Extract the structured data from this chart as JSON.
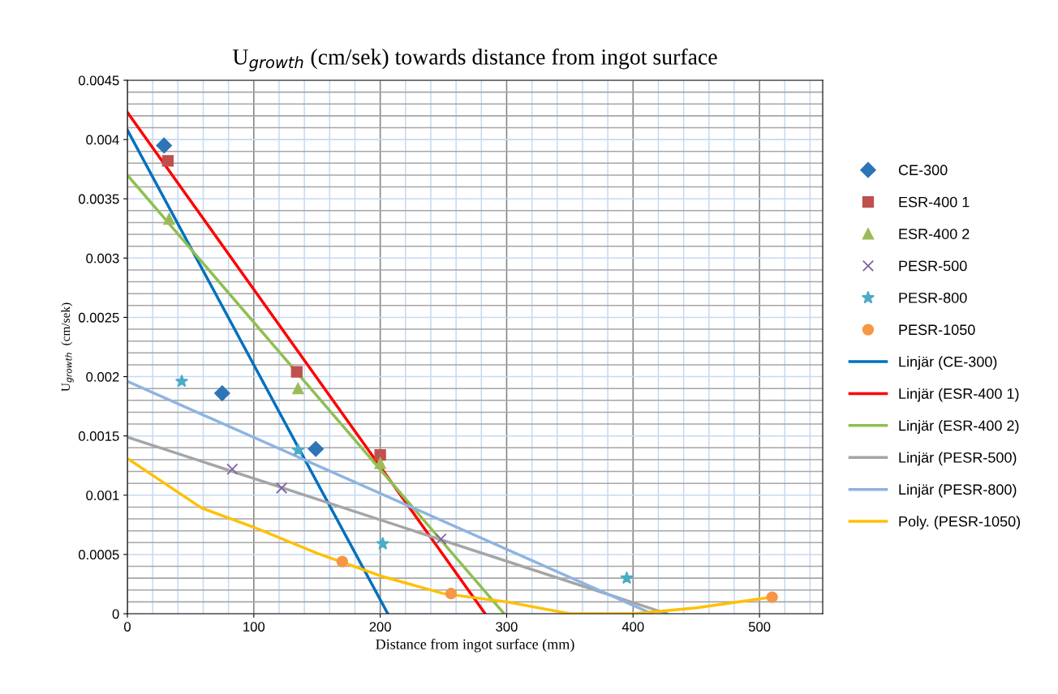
{
  "chart_data": {
    "type": "scatter",
    "title": "U$_{growth}$ (cm/sek) towards distance from ingot surface",
    "xlabel": "Distance from ingot surface (mm)",
    "ylabel": "U$_{growth}$  (cm/sek)",
    "xlim": [
      0,
      550
    ],
    "xticks": [
      0,
      {
        "value": 20,
        "label": null
      },
      {
        "value": 40,
        "label": null
      },
      {
        "value": 60,
        "label": null
      },
      {
        "value": 80,
        "label": null
      },
      100,
      {
        "value": 120,
        "label": null
      },
      {
        "value": 140,
        "label": null
      },
      {
        "value": 160,
        "label": null
      },
      {
        "value": 180,
        "label": null
      },
      200,
      {
        "value": 220,
        "label": null
      },
      {
        "value": 240,
        "label": null
      },
      {
        "value": 260,
        "label": null
      },
      {
        "value": 280,
        "label": null
      },
      300,
      {
        "value": 320,
        "label": null
      },
      {
        "value": 340,
        "label": null
      },
      {
        "value": 360,
        "label": null
      },
      {
        "value": 380,
        "label": null
      },
      400,
      {
        "value": 420,
        "label": null
      },
      {
        "value": 440,
        "label": null
      },
      {
        "value": 460,
        "label": null
      },
      {
        "value": 480,
        "label": null
      },
      500,
      {
        "value": 520,
        "label": null
      },
      {
        "value": 540,
        "label": null
      }
    ],
    "ylim": [
      0,
      0.0045
    ],
    "yticks": [
      0,
      {
        "value": 0.0001,
        "label": null
      },
      {
        "value": 0.0002,
        "label": null
      },
      {
        "value": 0.0003,
        "label": null
      },
      {
        "value": 0.0004,
        "label": null
      },
      0.0005,
      {
        "value": 0.0006,
        "label": null
      },
      {
        "value": 0.0007,
        "label": null
      },
      {
        "value": 0.0008,
        "label": null
      },
      {
        "value": 0.0009,
        "label": null
      },
      0.001,
      {
        "value": 0.0011,
        "label": null
      },
      {
        "value": 0.0012,
        "label": null
      },
      {
        "value": 0.0013,
        "label": null
      },
      {
        "value": 0.0014,
        "label": null
      },
      0.0015,
      {
        "value": 0.0016,
        "label": null
      },
      {
        "value": 0.0017,
        "label": null
      },
      {
        "value": 0.0018,
        "label": null
      },
      {
        "value": 0.0019,
        "label": null
      },
      0.002,
      {
        "value": 0.0021,
        "label": null
      },
      {
        "value": 0.0022,
        "label": null
      },
      {
        "value": 0.0023,
        "label": null
      },
      {
        "value": 0.0024,
        "label": null
      },
      0.0025,
      {
        "value": 0.0026,
        "label": null
      },
      {
        "value": 0.0027,
        "label": null
      },
      {
        "value": 0.0028,
        "label": null
      },
      {
        "value": 0.0029,
        "label": null
      },
      0.003,
      {
        "value": 0.0031,
        "label": null
      },
      {
        "value": 0.0032,
        "label": null
      },
      {
        "value": 0.0033,
        "label": null
      },
      {
        "value": 0.0034,
        "label": null
      },
      0.0035,
      {
        "value": 0.0036,
        "label": null
      },
      {
        "value": 0.0037,
        "label": null
      },
      {
        "value": 0.0038,
        "label": null
      },
      {
        "value": 0.0039,
        "label": null
      },
      0.004,
      {
        "value": 0.0041,
        "label": null
      },
      {
        "value": 0.0042,
        "label": null
      },
      {
        "value": 0.0043,
        "label": null
      },
      {
        "value": 0.0044,
        "label": null
      },
      0.0045
    ],
    "grid": true,
    "legend": "right",
    "series": [
      {
        "name": "CE-300",
        "marker": "diamond",
        "color": "#2e75b6",
        "x": [
          29,
          75,
          149
        ],
        "values": [
          0.00395,
          0.00186,
          0.00139
        ]
      },
      {
        "name": "ESR-400 1",
        "marker": "square",
        "color": "#c0504d",
        "x": [
          32,
          134,
          200
        ],
        "values": [
          0.00382,
          0.00204,
          0.00134
        ]
      },
      {
        "name": "ESR-400 2",
        "marker": "triangle",
        "color": "#9bbb59",
        "x": [
          33,
          135,
          200
        ],
        "values": [
          0.00333,
          0.0019,
          0.00127
        ]
      },
      {
        "name": "PESR-500",
        "marker": "cross",
        "color": "#8064a2",
        "x": [
          83,
          122,
          248
        ],
        "values": [
          0.00122,
          0.00106,
          0.00063
        ]
      },
      {
        "name": "PESR-800",
        "marker": "star",
        "color": "#4bacc6",
        "x": [
          43,
          135,
          202,
          395
        ],
        "values": [
          0.00196,
          0.00138,
          0.00059,
          0.0003
        ]
      },
      {
        "name": "PESR-1050",
        "marker": "circle",
        "color": "#f79646",
        "x": [
          170,
          256,
          510
        ],
        "values": [
          0.00044,
          0.00017,
          0.00014
        ]
      },
      {
        "name": "Linjär (CE-300)",
        "type": "line",
        "color": "#0070c0",
        "x": [
          0,
          206
        ],
        "values": [
          0.00408,
          0
        ]
      },
      {
        "name": "Linjär (ESR-400 1)",
        "type": "line",
        "color": "#ff0000",
        "x": [
          0,
          283
        ],
        "values": [
          0.00423,
          0
        ]
      },
      {
        "name": "Linjär (ESR-400 2)",
        "type": "line",
        "color": "#8fbf4f",
        "x": [
          0,
          298
        ],
        "values": [
          0.0037,
          0
        ]
      },
      {
        "name": "Linjär (PESR-500)",
        "type": "line",
        "color": "#a5a5a5",
        "x": [
          0,
          427
        ],
        "values": [
          0.00149,
          0
        ]
      },
      {
        "name": "Linjär (PESR-800)",
        "type": "line",
        "color": "#8db4e2",
        "x": [
          0,
          415
        ],
        "values": [
          0.00196,
          0
        ]
      },
      {
        "name": "Poly. (PESR-1050)",
        "type": "line",
        "color": "#ffc000",
        "x": [
          0,
          59,
          100,
          150,
          200,
          250,
          300,
          350,
          400,
          450,
          510
        ],
        "values": [
          0.00131,
          0.00089,
          0.00073,
          0.00051,
          0.00032,
          0.00017,
          0.0001,
          0,
          0,
          5e-05,
          0.00014
        ]
      }
    ]
  }
}
